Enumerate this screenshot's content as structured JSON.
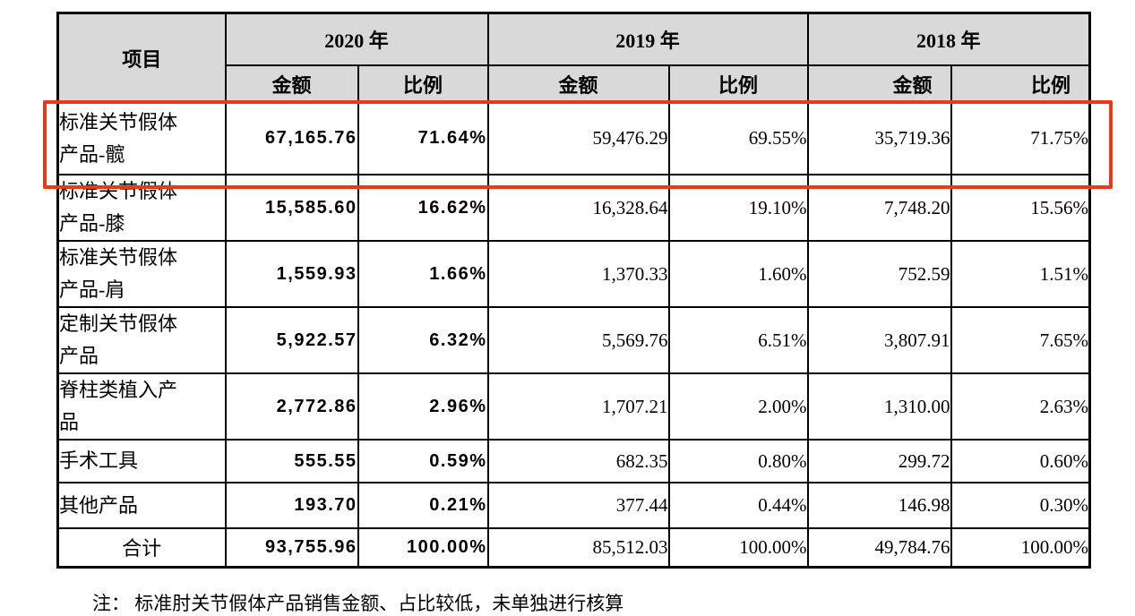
{
  "document": {
    "footnote": "注：  标准肘关节假体产品销售金额、占比较低，未单独进行核算",
    "highlight_color": "#e8391d",
    "header_bg_color": "#d9d9d9"
  },
  "table": {
    "columns": {
      "item": "项目",
      "amount": "金额",
      "ratio": "比例"
    },
    "year_groups": [
      {
        "year": "2020 年"
      },
      {
        "year": "2019 年"
      },
      {
        "year": "2018 年"
      }
    ],
    "rows": [
      {
        "item": "标准关节假体\n产品-髋",
        "y2020_amount": "67,165.76",
        "y2020_ratio": "71.64%",
        "y2019_amount": "59,476.29",
        "y2019_ratio": "69.55%",
        "y2018_amount": "35,719.36",
        "y2018_ratio": "71.75%",
        "highlighted": true,
        "is_total": false
      },
      {
        "item": "标准关节假体\n产品-膝",
        "y2020_amount": "15,585.60",
        "y2020_ratio": "16.62%",
        "y2019_amount": "16,328.64",
        "y2019_ratio": "19.10%",
        "y2018_amount": "7,748.20",
        "y2018_ratio": "15.56%",
        "highlighted": false,
        "is_total": false
      },
      {
        "item": "标准关节假体\n产品-肩",
        "y2020_amount": "1,559.93",
        "y2020_ratio": "1.66%",
        "y2019_amount": "1,370.33",
        "y2019_ratio": "1.60%",
        "y2018_amount": "752.59",
        "y2018_ratio": "1.51%",
        "highlighted": false,
        "is_total": false
      },
      {
        "item": "定制关节假体\n产品",
        "y2020_amount": "5,922.57",
        "y2020_ratio": "6.32%",
        "y2019_amount": "5,569.76",
        "y2019_ratio": "6.51%",
        "y2018_amount": "3,807.91",
        "y2018_ratio": "7.65%",
        "highlighted": false,
        "is_total": false
      },
      {
        "item": "脊柱类植入产\n品",
        "y2020_amount": "2,772.86",
        "y2020_ratio": "2.96%",
        "y2019_amount": "1,707.21",
        "y2019_ratio": "2.00%",
        "y2018_amount": "1,310.00",
        "y2018_ratio": "2.63%",
        "highlighted": false,
        "is_total": false
      },
      {
        "item": "手术工具",
        "y2020_amount": "555.55",
        "y2020_ratio": "0.59%",
        "y2019_amount": "682.35",
        "y2019_ratio": "0.80%",
        "y2018_amount": "299.72",
        "y2018_ratio": "0.60%",
        "highlighted": false,
        "is_total": false
      },
      {
        "item": "其他产品",
        "y2020_amount": "193.70",
        "y2020_ratio": "0.21%",
        "y2019_amount": "377.44",
        "y2019_ratio": "0.44%",
        "y2018_amount": "146.98",
        "y2018_ratio": "0.30%",
        "highlighted": false,
        "is_total": false
      },
      {
        "item": "合计",
        "y2020_amount": "93,755.96",
        "y2020_ratio": "100.00%",
        "y2019_amount": "85,512.03",
        "y2019_ratio": "100.00%",
        "y2018_amount": "49,784.76",
        "y2018_ratio": "100.00%",
        "highlighted": false,
        "is_total": true
      }
    ]
  }
}
